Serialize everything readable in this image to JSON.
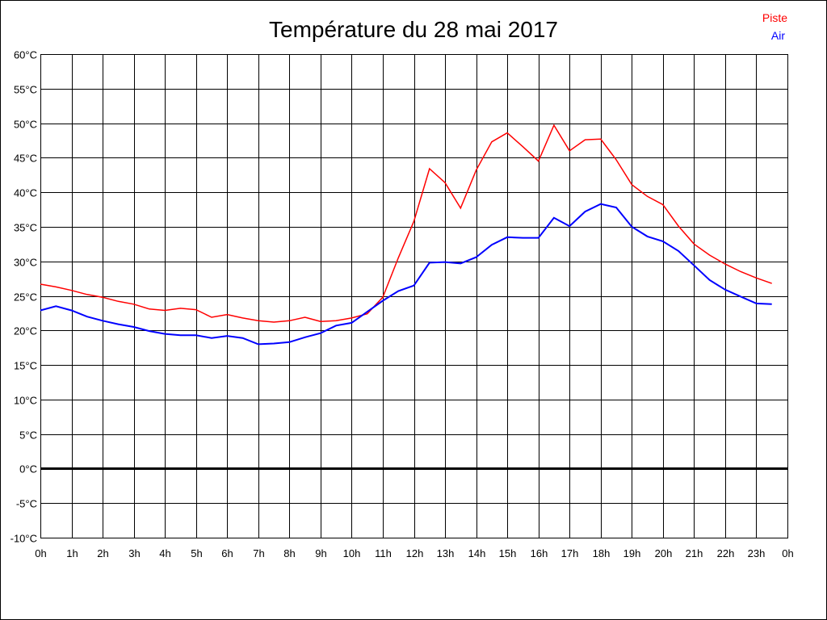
{
  "chart_data": {
    "type": "line",
    "title": "Température du 28 mai 2017",
    "xlabel": "",
    "ylabel": "",
    "ylim": [
      -10,
      60
    ],
    "xlim": [
      0,
      24
    ],
    "grid": true,
    "legend_position": "top-right",
    "y_ticks": [
      "-10°C",
      "-5°C",
      "0°C",
      "5°C",
      "10°C",
      "15°C",
      "20°C",
      "25°C",
      "30°C",
      "35°C",
      "40°C",
      "45°C",
      "50°C",
      "55°C",
      "60°C"
    ],
    "x_ticks": [
      "0h",
      "1h",
      "2h",
      "3h",
      "4h",
      "5h",
      "6h",
      "7h",
      "8h",
      "9h",
      "10h",
      "11h",
      "12h",
      "13h",
      "14h",
      "15h",
      "16h",
      "17h",
      "18h",
      "19h",
      "20h",
      "21h",
      "22h",
      "23h",
      "0h"
    ],
    "x": [
      0,
      0.5,
      1,
      1.5,
      2,
      2.5,
      3,
      3.5,
      4,
      4.5,
      5,
      5.5,
      6,
      6.5,
      7,
      7.5,
      8,
      8.5,
      9,
      9.5,
      10,
      10.5,
      11,
      11.5,
      12,
      12.5,
      13,
      13.5,
      14,
      14.5,
      15,
      15.5,
      16,
      16.5,
      17,
      17.5,
      18,
      18.5,
      19,
      19.5,
      20,
      20.5,
      21,
      21.5,
      22,
      22.5,
      23,
      23.5
    ],
    "series": [
      {
        "name": "Piste",
        "color": "#ff0000",
        "values": [
          26.7,
          26.3,
          25.8,
          25.2,
          24.8,
          24.2,
          23.8,
          23.1,
          22.9,
          23.2,
          23.0,
          21.9,
          22.3,
          21.8,
          21.4,
          21.2,
          21.4,
          21.9,
          21.3,
          21.4,
          21.8,
          22.4,
          24.8,
          30.5,
          35.8,
          43.4,
          41.4,
          37.7,
          43.2,
          47.3,
          48.6,
          46.6,
          44.5,
          49.7,
          46.0,
          47.6,
          47.7,
          44.7,
          41.1,
          39.4,
          38.2,
          35.1,
          32.5,
          30.9,
          29.6,
          28.5,
          27.6,
          26.8
        ]
      },
      {
        "name": "Air",
        "color": "#0000ff",
        "values": [
          22.9,
          23.5,
          22.9,
          22.0,
          21.4,
          20.9,
          20.5,
          19.9,
          19.5,
          19.3,
          19.3,
          18.9,
          19.2,
          18.9,
          18.0,
          18.1,
          18.3,
          19.0,
          19.6,
          20.7,
          21.1,
          22.7,
          24.3,
          25.7,
          26.5,
          29.8,
          29.9,
          29.7,
          30.6,
          32.4,
          33.5,
          33.4,
          33.4,
          36.3,
          35.1,
          37.2,
          38.3,
          37.8,
          35.0,
          33.6,
          32.9,
          31.5,
          29.4,
          27.3,
          25.9,
          24.9,
          23.9,
          23.8
        ]
      }
    ]
  }
}
